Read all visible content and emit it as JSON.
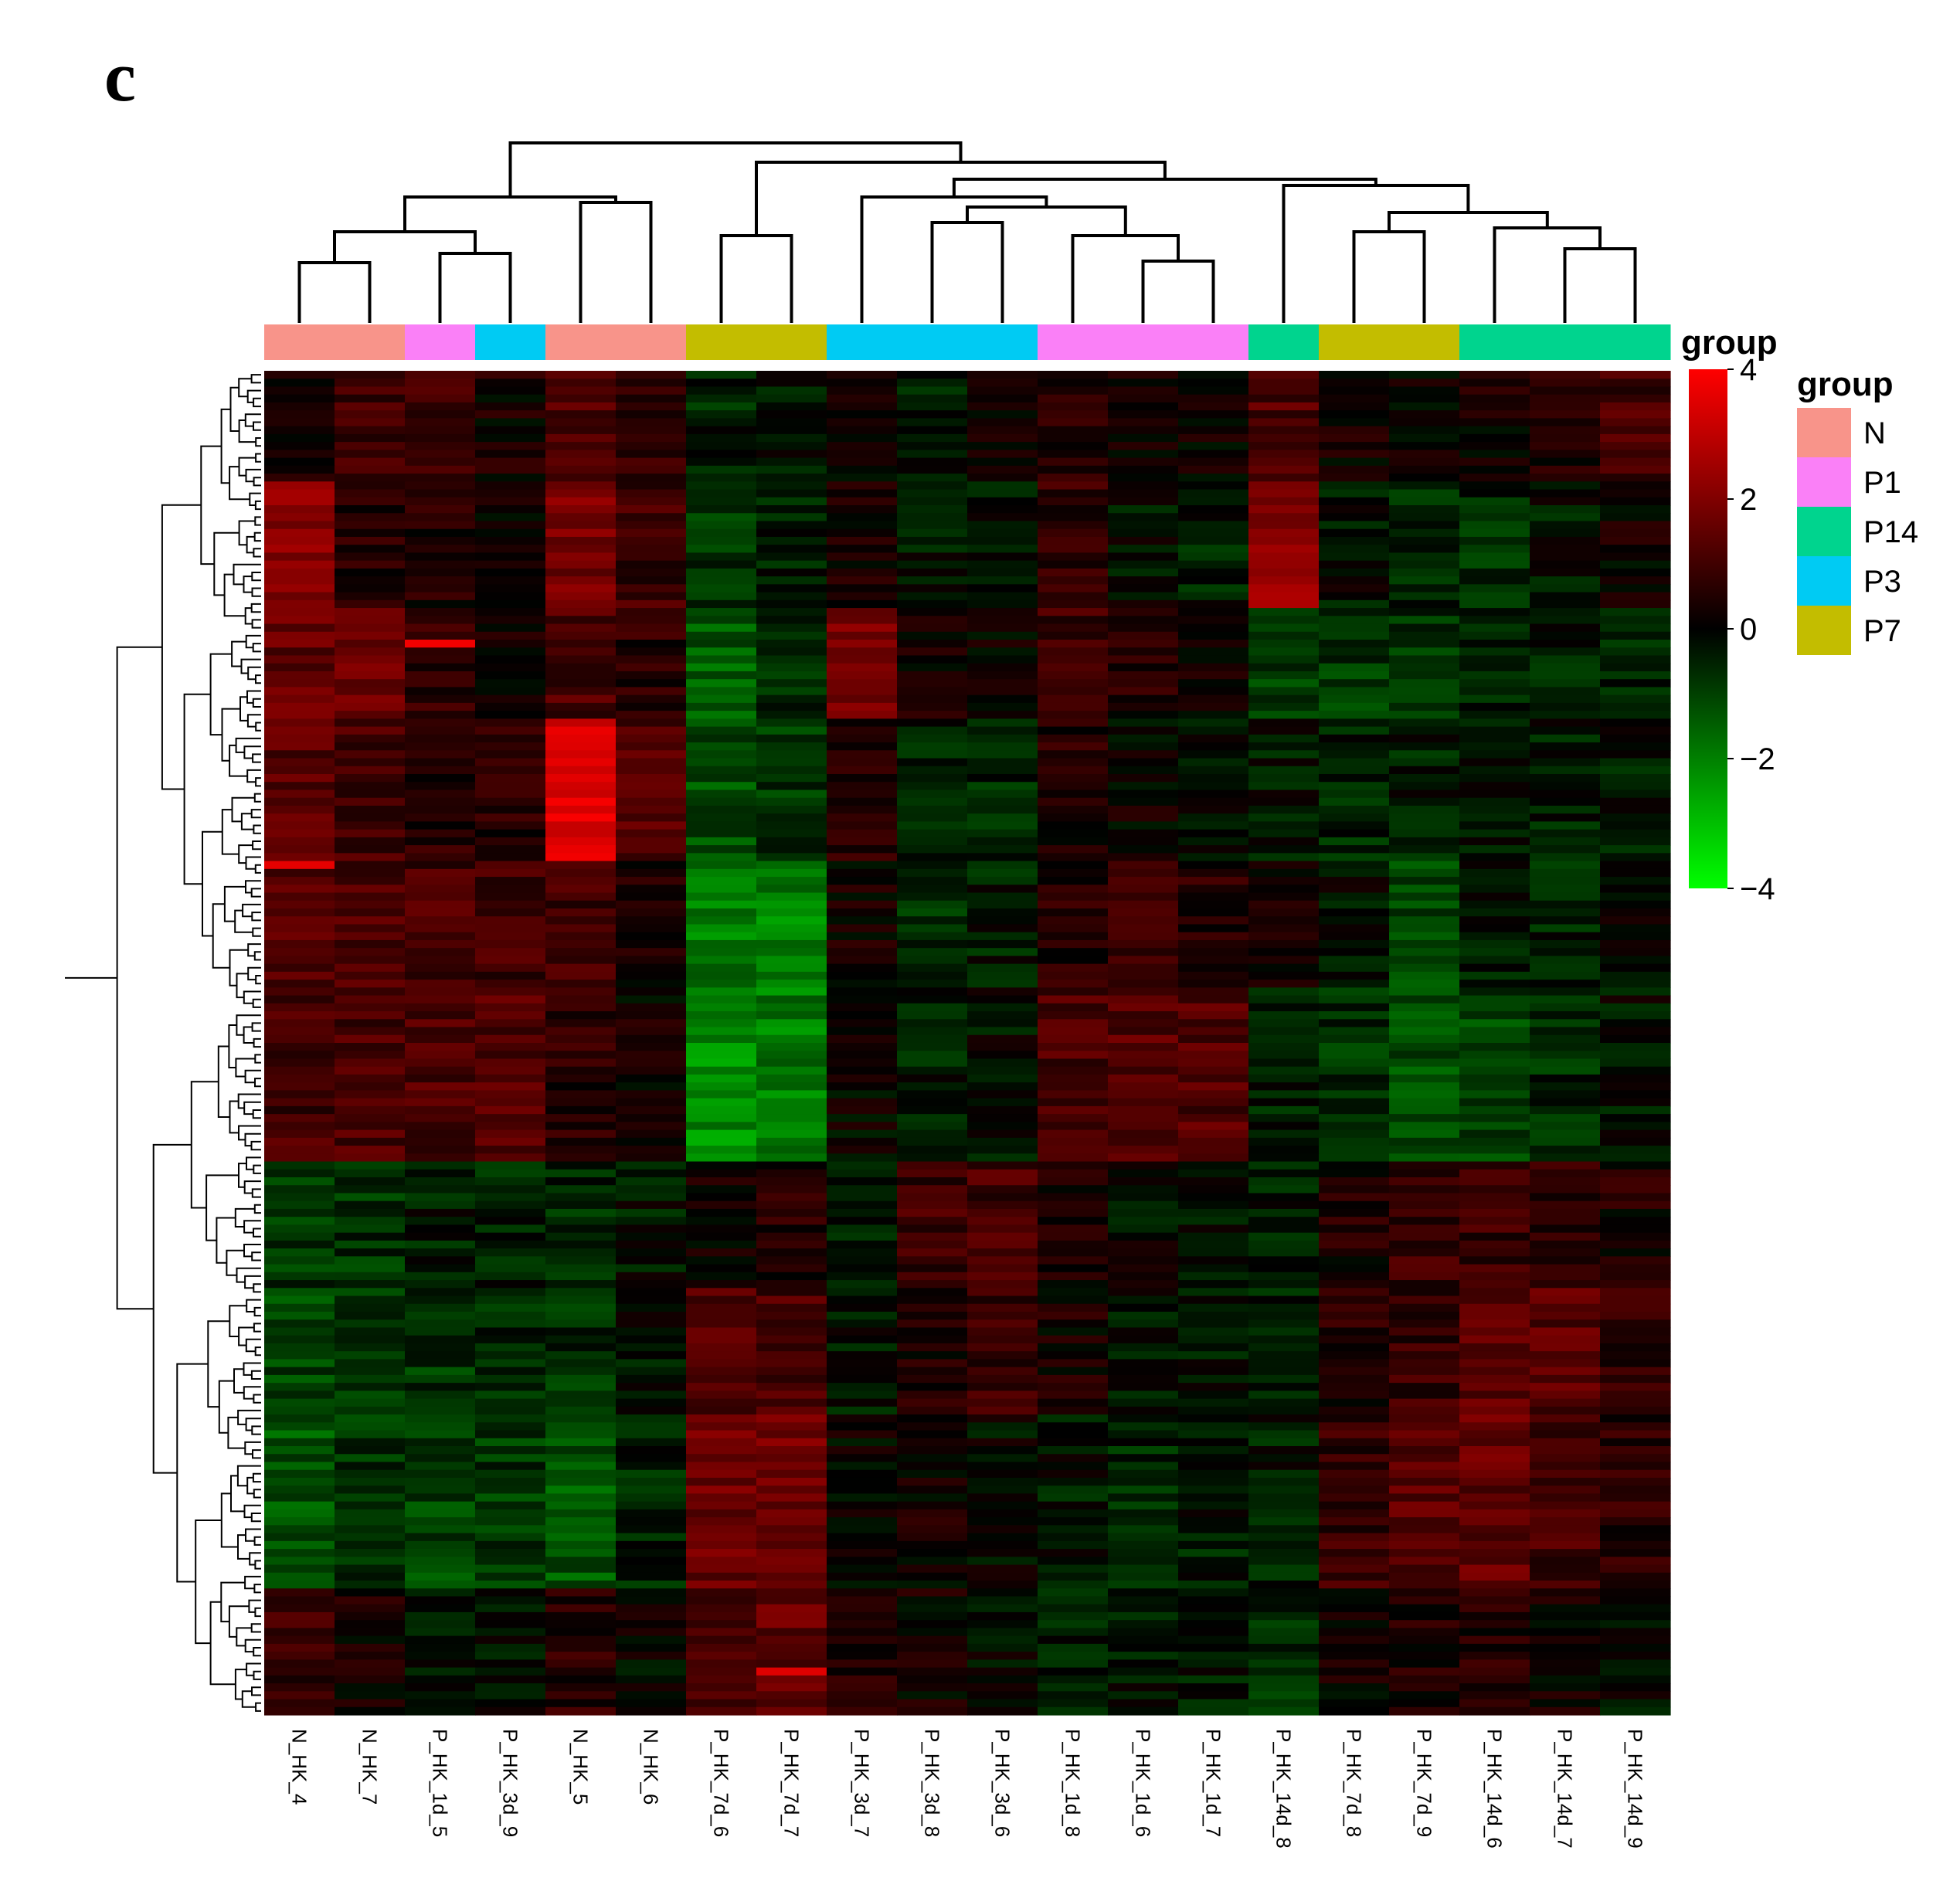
{
  "panel_label": "c",
  "chart_data": {
    "type": "heatmap",
    "columns": [
      "N_HK_4",
      "N_HK_7",
      "P_HK_1d_5",
      "P_HK_3d_9",
      "N_HK_5",
      "N_HK_6",
      "P_HK_7d_6",
      "P_HK_7d_7",
      "P_HK_3d_7",
      "P_HK_3d_8",
      "P_HK_3d_6",
      "P_HK_1d_8",
      "P_HK_1d_6",
      "P_HK_1d_7",
      "P_HK_14d_8",
      "P_HK_7d_8",
      "P_HK_7d_9",
      "P_HK_14d_6",
      "P_HK_14d_7",
      "P_HK_14d_9"
    ],
    "column_groups": [
      "N",
      "N",
      "P1",
      "P3",
      "N",
      "N",
      "P7",
      "P7",
      "P3",
      "P3",
      "P3",
      "P1",
      "P1",
      "P1",
      "P14",
      "P7",
      "P7",
      "P14",
      "P14",
      "P14"
    ],
    "column_dendrogram": "hierarchical clustering of samples",
    "row_dendrogram": "hierarchical clustering of genes",
    "color_scale": {
      "min": -4,
      "max": 4,
      "ticks": [
        4,
        2,
        0,
        -2,
        -4
      ],
      "tick_labels": [
        "4",
        "2",
        "0",
        "−2",
        "−4"
      ],
      "low_color": "#00ff00",
      "mid_color": "#000000",
      "high_color": "#ff0000"
    },
    "group_legend": {
      "title": "group",
      "entries": [
        {
          "label": "N",
          "color": "#f8948a"
        },
        {
          "label": "P1",
          "color": "#fa80f7"
        },
        {
          "label": "P14",
          "color": "#00d48e"
        },
        {
          "label": "P3",
          "color": "#00cbf3"
        },
        {
          "label": "P7",
          "color": "#c3bd00"
        }
      ]
    },
    "annotation_bar_title": "group",
    "row_blocks": [
      {
        "rows": 14,
        "values": [
          0.4,
          0.9,
          1.0,
          0.3,
          1.2,
          0.6,
          -0.5,
          -0.3,
          0.2,
          -0.4,
          0.1,
          0.5,
          0.3,
          0.2,
          1.2,
          0.2,
          0.0,
          0.3,
          0.5,
          1.0
        ]
      },
      {
        "rows": 16,
        "values": [
          2.0,
          0.6,
          0.5,
          0.2,
          1.8,
          0.9,
          -0.8,
          -0.5,
          0.4,
          -0.3,
          -0.2,
          0.7,
          -0.2,
          -0.4,
          2.2,
          -0.2,
          -0.6,
          -0.6,
          -0.3,
          0.2
        ]
      },
      {
        "rows": 14,
        "values": [
          1.5,
          1.6,
          0.7,
          0.4,
          1.1,
          0.6,
          -1.4,
          -0.7,
          1.8,
          0.3,
          0.1,
          0.9,
          0.5,
          0.2,
          -0.9,
          -0.8,
          -0.7,
          -0.4,
          -0.4,
          -0.4
        ]
      },
      {
        "rows": 18,
        "values": [
          1.3,
          1.0,
          0.6,
          0.6,
          3.4,
          1.2,
          -1.2,
          -0.8,
          0.6,
          -0.4,
          -0.5,
          0.5,
          0.1,
          -0.1,
          -0.3,
          -0.5,
          -0.4,
          -0.4,
          -0.4,
          -0.3
        ]
      },
      {
        "rows": 16,
        "values": [
          1.2,
          1.2,
          1.0,
          1.0,
          0.9,
          0.3,
          -1.9,
          -2.0,
          0.2,
          -0.6,
          -0.4,
          0.6,
          0.9,
          0.6,
          0.3,
          -0.2,
          -1.0,
          -0.4,
          -0.5,
          0.1
        ]
      },
      {
        "rows": 22,
        "values": [
          1.0,
          1.1,
          1.2,
          1.3,
          0.6,
          0.2,
          -2.2,
          -1.9,
          0.0,
          -0.4,
          -0.2,
          1.1,
          1.3,
          1.2,
          -0.4,
          -0.7,
          -1.2,
          -1.0,
          -0.6,
          -0.2
        ]
      },
      {
        "rows": 16,
        "values": [
          -0.8,
          -0.7,
          -0.4,
          -0.5,
          -0.6,
          -0.3,
          0.3,
          0.5,
          -0.4,
          0.9,
          1.0,
          0.4,
          -0.1,
          -0.2,
          -0.4,
          0.4,
          0.8,
          0.8,
          0.7,
          0.4
        ]
      },
      {
        "rows": 16,
        "values": [
          -1.0,
          -0.8,
          -0.8,
          -0.6,
          -0.7,
          -0.3,
          1.1,
          1.1,
          -0.3,
          0.4,
          0.8,
          0.3,
          -0.3,
          -0.3,
          -0.5,
          0.5,
          0.8,
          1.4,
          1.3,
          0.6
        ]
      },
      {
        "rows": 22,
        "values": [
          -1.3,
          -0.8,
          -1.0,
          -0.8,
          -1.3,
          -0.5,
          1.6,
          1.8,
          0.1,
          0.2,
          -0.1,
          -0.3,
          -0.5,
          -0.4,
          -0.4,
          0.8,
          1.3,
          1.5,
          1.0,
          0.6
        ]
      },
      {
        "rows": 16,
        "values": [
          0.9,
          0.3,
          -0.3,
          -0.3,
          0.6,
          0.0,
          1.2,
          1.5,
          0.6,
          0.2,
          -0.2,
          -0.5,
          -0.3,
          -0.4,
          -0.7,
          0.2,
          0.4,
          0.5,
          0.2,
          -0.2
        ]
      }
    ],
    "highlight_rows": [
      {
        "block": 2,
        "row": 4,
        "col": 2,
        "value": 3.8
      },
      {
        "block": 4,
        "row": 0,
        "col": 0,
        "value": 3.6
      },
      {
        "block": 9,
        "row": 10,
        "col": 7,
        "value": 3.5
      }
    ]
  }
}
